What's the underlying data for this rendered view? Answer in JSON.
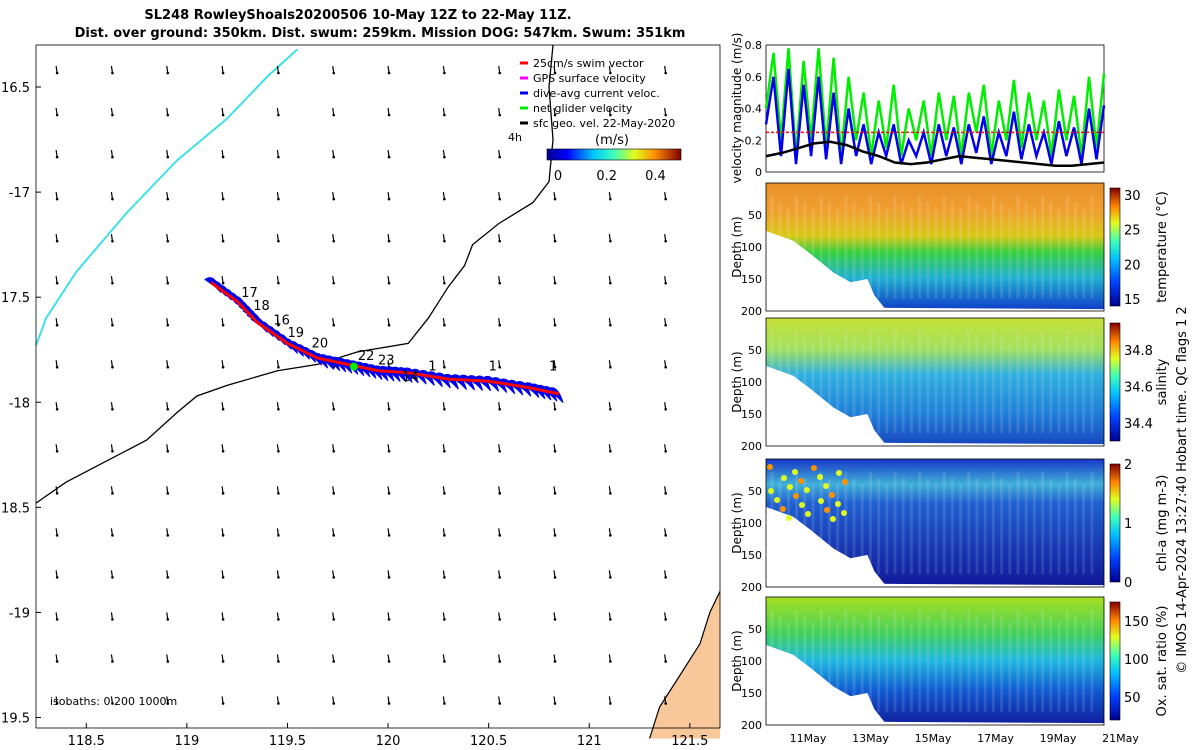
{
  "header": {
    "title_line1": "SL248 RowleyShoals20200506 10-May 12Z to 22-May 11Z.",
    "title_line2": "Dist. over ground: 350km. Dist. swum: 259km. Mission DOG: 547km. Swum: 351km"
  },
  "colors": {
    "coast": "#000000",
    "isobath": "#40e0e8",
    "land": "#f8c89a",
    "track_red": "#ff0000",
    "track_blue": "#0000ee",
    "net_green": "#00ee00",
    "gps_magenta": "#ff00ff",
    "threshold_red": "#ff0000"
  },
  "chart_data": [
    {
      "type": "map",
      "xlim": [
        118.25,
        121.65
      ],
      "ylim": [
        -19.55,
        -16.3
      ],
      "x_ticks": [
        118.5,
        119,
        119.5,
        120,
        120.5,
        121,
        121.5
      ],
      "x_tick_labels": [
        "118.5",
        "119",
        "119.5",
        "120",
        "120.5",
        "121",
        "121.5"
      ],
      "y_ticks": [
        -16.5,
        -17,
        -17.5,
        -18,
        -18.5,
        -19,
        -19.5
      ],
      "y_tick_labels": [
        "16.5",
        "-17",
        "17.5",
        "-18",
        "18.5",
        "-19",
        "19.5"
      ],
      "legend": [
        {
          "label": "25cm/s swim vector",
          "color": "#ff0000"
        },
        {
          "label": "GPS surface velocity",
          "color": "#ff00ff"
        },
        {
          "label": "dive-avg current veloc.",
          "color": "#0000ee"
        },
        {
          "label": "net glider velocity",
          "color": "#00ee00"
        },
        {
          "label": "sfc geo. vel. 22-May-2020",
          "color": "#000000"
        }
      ],
      "legend_placement": "top-right",
      "legend_marker_label": "4h",
      "colorbar": {
        "label": "(m/s)",
        "ticks": [
          "0",
          "0.2",
          "0.4"
        ],
        "range": [
          0,
          0.55
        ]
      },
      "isobath_note": "isobaths: 0   200  1000m",
      "coastline": [
        [
          118.25,
          -18.48
        ],
        [
          118.4,
          -18.38
        ],
        [
          118.6,
          -18.28
        ],
        [
          118.8,
          -18.18
        ],
        [
          118.95,
          -18.05
        ],
        [
          119.05,
          -17.97
        ],
        [
          119.2,
          -17.92
        ],
        [
          119.45,
          -17.85
        ],
        [
          119.65,
          -17.82
        ],
        [
          119.85,
          -17.76
        ],
        [
          120.1,
          -17.72
        ],
        [
          120.2,
          -17.6
        ],
        [
          120.3,
          -17.45
        ],
        [
          120.38,
          -17.35
        ],
        [
          120.42,
          -17.25
        ],
        [
          120.55,
          -17.15
        ],
        [
          120.72,
          -17.05
        ],
        [
          120.8,
          -16.95
        ],
        [
          120.82,
          -16.75
        ],
        [
          120.8,
          -16.5
        ],
        [
          120.82,
          -16.3
        ]
      ],
      "isobath_1000": [
        [
          118.25,
          -17.73
        ],
        [
          118.3,
          -17.6
        ],
        [
          118.45,
          -17.38
        ],
        [
          118.7,
          -17.1
        ],
        [
          118.95,
          -16.85
        ],
        [
          119.2,
          -16.65
        ],
        [
          119.4,
          -16.45
        ],
        [
          119.55,
          -16.32
        ]
      ],
      "land_polygon": [
        [
          121.3,
          -19.6
        ],
        [
          121.35,
          -19.45
        ],
        [
          121.45,
          -19.3
        ],
        [
          121.55,
          -19.15
        ],
        [
          121.6,
          -19.0
        ],
        [
          121.65,
          -18.9
        ],
        [
          121.65,
          -19.6
        ]
      ],
      "glider_track": [
        [
          119.12,
          -17.43
        ],
        [
          119.25,
          -17.52
        ],
        [
          119.35,
          -17.62
        ],
        [
          119.5,
          -17.72
        ],
        [
          119.65,
          -17.79
        ],
        [
          119.8,
          -17.82
        ],
        [
          119.95,
          -17.85
        ],
        [
          120.1,
          -17.86
        ],
        [
          120.3,
          -17.89
        ],
        [
          120.5,
          -17.9
        ],
        [
          120.7,
          -17.93
        ],
        [
          120.85,
          -17.96
        ]
      ],
      "track_day_labels": [
        {
          "text": "17",
          "lon": 119.27,
          "lat": -17.5
        },
        {
          "text": "18",
          "lon": 119.33,
          "lat": -17.56
        },
        {
          "text": "16",
          "lon": 119.43,
          "lat": -17.63
        },
        {
          "text": "19",
          "lon": 119.5,
          "lat": -17.69
        },
        {
          "text": "20",
          "lon": 119.62,
          "lat": -17.74
        },
        {
          "text": "22",
          "lon": 119.85,
          "lat": -17.8
        },
        {
          "text": "23",
          "lon": 119.95,
          "lat": -17.82
        },
        {
          "text": "14",
          "lon": 120.07,
          "lat": -17.9
        },
        {
          "text": "1",
          "lon": 120.2,
          "lat": -17.85
        },
        {
          "text": "1",
          "lon": 120.5,
          "lat": -17.85
        },
        {
          "text": "1",
          "lon": 120.8,
          "lat": -17.85
        }
      ]
    },
    {
      "type": "line",
      "ylabel": "velocity magnitude (m/s)",
      "ylim": [
        0,
        0.8
      ],
      "y_ticks": [
        "0",
        "0.2",
        "0.4",
        "0.6",
        "0.8"
      ],
      "xlim": [
        10.5,
        22.5
      ],
      "series": [
        {
          "color": "#00ee00",
          "values": [
            0.4,
            0.75,
            0.2,
            0.78,
            0.1,
            0.7,
            0.2,
            0.78,
            0.15,
            0.72,
            0.1,
            0.6,
            0.2,
            0.5,
            0.1,
            0.45,
            0.15,
            0.55,
            0.1,
            0.4,
            0.2,
            0.45,
            0.1,
            0.5,
            0.2,
            0.48,
            0.1,
            0.5,
            0.25,
            0.55,
            0.1,
            0.45,
            0.2,
            0.58,
            0.15,
            0.5,
            0.2,
            0.45,
            0.1,
            0.52,
            0.2,
            0.48,
            0.1,
            0.6,
            0.15,
            0.62
          ]
        },
        {
          "color": "#0000ee",
          "values": [
            0.3,
            0.6,
            0.1,
            0.65,
            0.05,
            0.55,
            0.1,
            0.6,
            0.08,
            0.5,
            0.05,
            0.4,
            0.1,
            0.3,
            0.05,
            0.25,
            0.1,
            0.3,
            0.05,
            0.2,
            0.1,
            0.25,
            0.05,
            0.3,
            0.1,
            0.28,
            0.05,
            0.3,
            0.12,
            0.35,
            0.05,
            0.25,
            0.1,
            0.38,
            0.08,
            0.3,
            0.1,
            0.25,
            0.05,
            0.32,
            0.1,
            0.28,
            0.05,
            0.4,
            0.08,
            0.42
          ]
        },
        {
          "color": "#ff0000",
          "style": "dashed",
          "constant": 0.25
        },
        {
          "color": "#000000",
          "values": [
            0.1,
            0.12,
            0.15,
            0.18,
            0.19,
            0.17,
            0.13,
            0.1,
            0.06,
            0.05,
            0.06,
            0.08,
            0.1,
            0.09,
            0.08,
            0.07,
            0.06,
            0.05,
            0.04,
            0.04,
            0.05,
            0.06
          ]
        }
      ]
    },
    {
      "type": "heatmap",
      "ylabel": "Depth (m)",
      "y_ticks": [
        "50",
        "100",
        "150",
        "200"
      ],
      "colorbar_label": "temperature (°C)",
      "colorbar_ticks": [
        "30",
        "25",
        "20",
        "15"
      ],
      "crange": [
        14,
        31
      ]
    },
    {
      "type": "heatmap",
      "ylabel": "Depth (m)",
      "y_ticks": [
        "50",
        "100",
        "150",
        "200"
      ],
      "colorbar_label": "salinity",
      "colorbar_ticks": [
        "34.8",
        "34.6",
        "34.4"
      ],
      "crange": [
        34.3,
        34.95
      ]
    },
    {
      "type": "heatmap",
      "ylabel": "Depth (m)",
      "y_ticks": [
        "50",
        "100",
        "150",
        "200"
      ],
      "colorbar_label": "chl-a  (mg m-3)",
      "colorbar_ticks": [
        "2",
        "1",
        "0"
      ],
      "crange": [
        0,
        2
      ]
    },
    {
      "type": "heatmap",
      "ylabel": "Depth (m)",
      "y_ticks": [
        "50",
        "100",
        "150",
        "200"
      ],
      "colorbar_label": "Ox. sat. ratio (%)",
      "colorbar_ticks": [
        "150",
        "100",
        "50"
      ],
      "crange": [
        20,
        175
      ],
      "x_tick_labels": [
        "11May",
        "13May",
        "15May",
        "17May",
        "19May",
        "21May"
      ]
    }
  ],
  "side_note": "© IMOS 14-Apr-2024 13:27:40 Hobart time. QC flags 1  2"
}
